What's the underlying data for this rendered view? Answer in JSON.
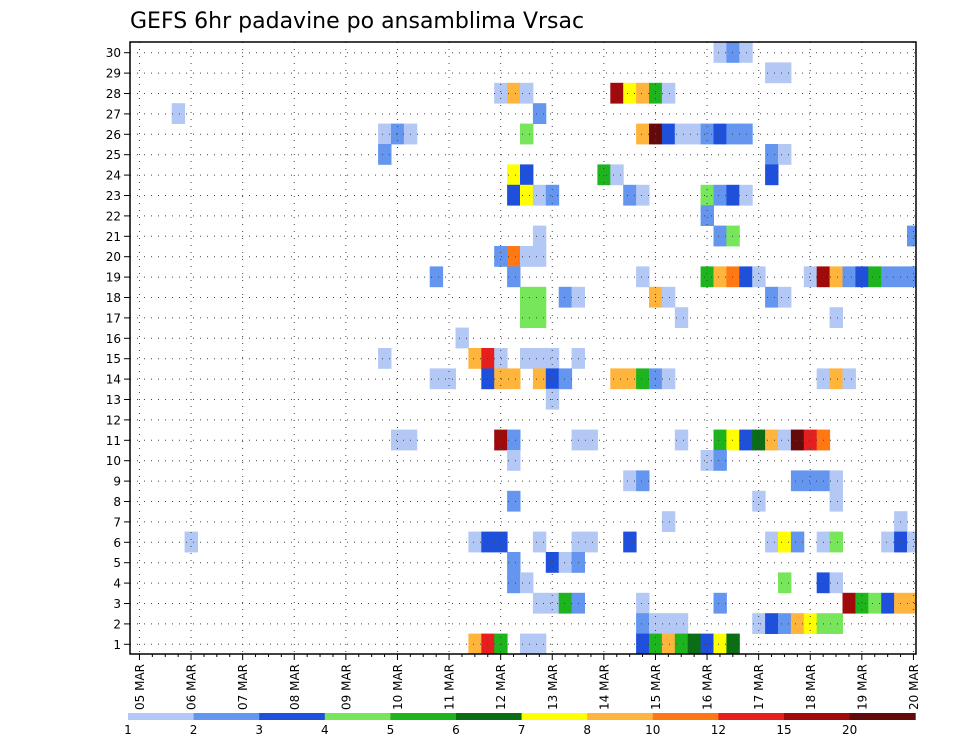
{
  "chart_data": {
    "type": "heatmap",
    "title": "GEFS 6hr padavine po ansamblima Vrsac",
    "xlabel": "",
    "ylabel": "",
    "x_unit": "6-hour steps from 05 MAR 00Z",
    "x_range_steps": [
      0,
      60
    ],
    "y_range": [
      1,
      30
    ],
    "x_tick_labels": [
      "05 MAR",
      "06 MAR",
      "07 MAR",
      "08 MAR",
      "09 MAR",
      "10 MAR",
      "11 MAR",
      "12 MAR",
      "13 MAR",
      "14 MAR",
      "15 MAR",
      "16 MAR",
      "17 MAR",
      "18 MAR",
      "19 MAR",
      "20 MAR"
    ],
    "y_tick_labels": [
      "1",
      "2",
      "3",
      "4",
      "5",
      "6",
      "7",
      "8",
      "9",
      "10",
      "11",
      "12",
      "13",
      "14",
      "15",
      "16",
      "17",
      "18",
      "19",
      "20",
      "21",
      "22",
      "23",
      "24",
      "25",
      "26",
      "27",
      "28",
      "29",
      "30"
    ],
    "grid": true,
    "legend": {
      "placement": "bottom",
      "thresholds": [
        "1",
        "2",
        "3",
        "4",
        "5",
        "6",
        "7",
        "8",
        "10",
        "12",
        "15",
        "20"
      ],
      "colors": [
        "#b4c8f5",
        "#6496f0",
        "#1e50dc",
        "#78e65a",
        "#1eb41e",
        "#0a6e14",
        "#ffff00",
        "#ffb43c",
        "#ff7814",
        "#e61e1e",
        "#a00a0a",
        "#640a0a"
      ]
    },
    "cells": [
      {
        "member": 30,
        "step": 45,
        "cls": 0
      },
      {
        "member": 30,
        "step": 46,
        "cls": 1
      },
      {
        "member": 30,
        "step": 47,
        "cls": 0
      },
      {
        "member": 29,
        "step": 49,
        "cls": 0
      },
      {
        "member": 29,
        "step": 50,
        "cls": 0
      },
      {
        "member": 28,
        "step": 28,
        "cls": 0
      },
      {
        "member": 28,
        "step": 29,
        "cls": 7
      },
      {
        "member": 28,
        "step": 30,
        "cls": 0
      },
      {
        "member": 28,
        "step": 37,
        "cls": 10
      },
      {
        "member": 28,
        "step": 38,
        "cls": 6
      },
      {
        "member": 28,
        "step": 39,
        "cls": 7
      },
      {
        "member": 28,
        "step": 40,
        "cls": 4
      },
      {
        "member": 28,
        "step": 41,
        "cls": 0
      },
      {
        "member": 27,
        "step": 3,
        "cls": 0
      },
      {
        "member": 27,
        "step": 31,
        "cls": 1
      },
      {
        "member": 26,
        "step": 19,
        "cls": 0
      },
      {
        "member": 26,
        "step": 20,
        "cls": 1
      },
      {
        "member": 26,
        "step": 21,
        "cls": 0
      },
      {
        "member": 26,
        "step": 30,
        "cls": 3
      },
      {
        "member": 26,
        "step": 39,
        "cls": 7
      },
      {
        "member": 26,
        "step": 40,
        "cls": 11
      },
      {
        "member": 26,
        "step": 41,
        "cls": 2
      },
      {
        "member": 26,
        "step": 42,
        "cls": 0
      },
      {
        "member": 26,
        "step": 43,
        "cls": 0
      },
      {
        "member": 26,
        "step": 44,
        "cls": 1
      },
      {
        "member": 26,
        "step": 45,
        "cls": 2
      },
      {
        "member": 26,
        "step": 46,
        "cls": 1
      },
      {
        "member": 26,
        "step": 47,
        "cls": 1
      },
      {
        "member": 25,
        "step": 19,
        "cls": 1
      },
      {
        "member": 25,
        "step": 49,
        "cls": 1
      },
      {
        "member": 25,
        "step": 50,
        "cls": 0
      },
      {
        "member": 24,
        "step": 29,
        "cls": 6
      },
      {
        "member": 24,
        "step": 30,
        "cls": 2
      },
      {
        "member": 24,
        "step": 36,
        "cls": 4
      },
      {
        "member": 24,
        "step": 37,
        "cls": 0
      },
      {
        "member": 24,
        "step": 49,
        "cls": 2
      },
      {
        "member": 23,
        "step": 29,
        "cls": 2
      },
      {
        "member": 23,
        "step": 30,
        "cls": 6
      },
      {
        "member": 23,
        "step": 31,
        "cls": 0
      },
      {
        "member": 23,
        "step": 32,
        "cls": 1
      },
      {
        "member": 23,
        "step": 38,
        "cls": 1
      },
      {
        "member": 23,
        "step": 39,
        "cls": 0
      },
      {
        "member": 23,
        "step": 44,
        "cls": 3
      },
      {
        "member": 23,
        "step": 45,
        "cls": 1
      },
      {
        "member": 23,
        "step": 46,
        "cls": 2
      },
      {
        "member": 23,
        "step": 47,
        "cls": 0
      },
      {
        "member": 22,
        "step": 44,
        "cls": 1
      },
      {
        "member": 21,
        "step": 31,
        "cls": 0
      },
      {
        "member": 21,
        "step": 45,
        "cls": 1
      },
      {
        "member": 21,
        "step": 46,
        "cls": 3
      },
      {
        "member": 21,
        "step": 60,
        "cls": 1
      },
      {
        "member": 20,
        "step": 28,
        "cls": 1
      },
      {
        "member": 20,
        "step": 29,
        "cls": 8
      },
      {
        "member": 20,
        "step": 30,
        "cls": 0
      },
      {
        "member": 20,
        "step": 31,
        "cls": 0
      },
      {
        "member": 19,
        "step": 23,
        "cls": 1
      },
      {
        "member": 19,
        "step": 29,
        "cls": 1
      },
      {
        "member": 19,
        "step": 39,
        "cls": 0
      },
      {
        "member": 19,
        "step": 44,
        "cls": 4
      },
      {
        "member": 19,
        "step": 45,
        "cls": 7
      },
      {
        "member": 19,
        "step": 46,
        "cls": 8
      },
      {
        "member": 19,
        "step": 47,
        "cls": 2
      },
      {
        "member": 19,
        "step": 48,
        "cls": 0
      },
      {
        "member": 19,
        "step": 52,
        "cls": 0
      },
      {
        "member": 19,
        "step": 53,
        "cls": 10
      },
      {
        "member": 19,
        "step": 54,
        "cls": 7
      },
      {
        "member": 19,
        "step": 55,
        "cls": 1
      },
      {
        "member": 19,
        "step": 56,
        "cls": 2
      },
      {
        "member": 19,
        "step": 57,
        "cls": 4
      },
      {
        "member": 19,
        "step": 58,
        "cls": 1
      },
      {
        "member": 19,
        "step": 59,
        "cls": 1
      },
      {
        "member": 19,
        "step": 60,
        "cls": 1
      },
      {
        "member": 18,
        "step": 30,
        "cls": 3
      },
      {
        "member": 18,
        "step": 31,
        "cls": 3
      },
      {
        "member": 18,
        "step": 33,
        "cls": 1
      },
      {
        "member": 18,
        "step": 34,
        "cls": 0
      },
      {
        "member": 18,
        "step": 40,
        "cls": 7
      },
      {
        "member": 18,
        "step": 41,
        "cls": 0
      },
      {
        "member": 18,
        "step": 49,
        "cls": 1
      },
      {
        "member": 18,
        "step": 50,
        "cls": 0
      },
      {
        "member": 17,
        "step": 30,
        "cls": 3
      },
      {
        "member": 17,
        "step": 31,
        "cls": 3
      },
      {
        "member": 17,
        "step": 42,
        "cls": 0
      },
      {
        "member": 17,
        "step": 54,
        "cls": 0
      },
      {
        "member": 16,
        "step": 25,
        "cls": 0
      },
      {
        "member": 15,
        "step": 19,
        "cls": 0
      },
      {
        "member": 15,
        "step": 26,
        "cls": 7
      },
      {
        "member": 15,
        "step": 27,
        "cls": 9
      },
      {
        "member": 15,
        "step": 28,
        "cls": 0
      },
      {
        "member": 15,
        "step": 30,
        "cls": 0
      },
      {
        "member": 15,
        "step": 31,
        "cls": 0
      },
      {
        "member": 15,
        "step": 32,
        "cls": 0
      },
      {
        "member": 15,
        "step": 34,
        "cls": 0
      },
      {
        "member": 14,
        "step": 23,
        "cls": 0
      },
      {
        "member": 14,
        "step": 24,
        "cls": 0
      },
      {
        "member": 14,
        "step": 27,
        "cls": 2
      },
      {
        "member": 14,
        "step": 28,
        "cls": 7
      },
      {
        "member": 14,
        "step": 29,
        "cls": 7
      },
      {
        "member": 14,
        "step": 31,
        "cls": 7
      },
      {
        "member": 14,
        "step": 32,
        "cls": 2
      },
      {
        "member": 14,
        "step": 33,
        "cls": 1
      },
      {
        "member": 14,
        "step": 37,
        "cls": 7
      },
      {
        "member": 14,
        "step": 38,
        "cls": 7
      },
      {
        "member": 14,
        "step": 39,
        "cls": 4
      },
      {
        "member": 14,
        "step": 40,
        "cls": 1
      },
      {
        "member": 14,
        "step": 41,
        "cls": 0
      },
      {
        "member": 14,
        "step": 53,
        "cls": 0
      },
      {
        "member": 14,
        "step": 54,
        "cls": 7
      },
      {
        "member": 14,
        "step": 55,
        "cls": 0
      },
      {
        "member": 13,
        "step": 32,
        "cls": 0
      },
      {
        "member": 11,
        "step": 20,
        "cls": 0
      },
      {
        "member": 11,
        "step": 21,
        "cls": 0
      },
      {
        "member": 11,
        "step": 28,
        "cls": 10
      },
      {
        "member": 11,
        "step": 29,
        "cls": 1
      },
      {
        "member": 11,
        "step": 34,
        "cls": 0
      },
      {
        "member": 11,
        "step": 35,
        "cls": 0
      },
      {
        "member": 11,
        "step": 42,
        "cls": 0
      },
      {
        "member": 11,
        "step": 45,
        "cls": 4
      },
      {
        "member": 11,
        "step": 46,
        "cls": 6
      },
      {
        "member": 11,
        "step": 47,
        "cls": 2
      },
      {
        "member": 11,
        "step": 48,
        "cls": 5
      },
      {
        "member": 11,
        "step": 49,
        "cls": 7
      },
      {
        "member": 11,
        "step": 50,
        "cls": 0
      },
      {
        "member": 11,
        "step": 51,
        "cls": 11
      },
      {
        "member": 11,
        "step": 52,
        "cls": 9
      },
      {
        "member": 11,
        "step": 53,
        "cls": 8
      },
      {
        "member": 10,
        "step": 29,
        "cls": 0
      },
      {
        "member": 10,
        "step": 44,
        "cls": 0
      },
      {
        "member": 10,
        "step": 45,
        "cls": 1
      },
      {
        "member": 9,
        "step": 38,
        "cls": 0
      },
      {
        "member": 9,
        "step": 39,
        "cls": 1
      },
      {
        "member": 9,
        "step": 51,
        "cls": 1
      },
      {
        "member": 9,
        "step": 52,
        "cls": 1
      },
      {
        "member": 9,
        "step": 53,
        "cls": 1
      },
      {
        "member": 9,
        "step": 54,
        "cls": 0
      },
      {
        "member": 8,
        "step": 29,
        "cls": 1
      },
      {
        "member": 8,
        "step": 48,
        "cls": 0
      },
      {
        "member": 8,
        "step": 54,
        "cls": 0
      },
      {
        "member": 7,
        "step": 41,
        "cls": 0
      },
      {
        "member": 7,
        "step": 59,
        "cls": 0
      },
      {
        "member": 6,
        "step": 4,
        "cls": 0
      },
      {
        "member": 6,
        "step": 26,
        "cls": 0
      },
      {
        "member": 6,
        "step": 27,
        "cls": 2
      },
      {
        "member": 6,
        "step": 28,
        "cls": 2
      },
      {
        "member": 6,
        "step": 31,
        "cls": 0
      },
      {
        "member": 6,
        "step": 34,
        "cls": 0
      },
      {
        "member": 6,
        "step": 35,
        "cls": 0
      },
      {
        "member": 6,
        "step": 38,
        "cls": 2
      },
      {
        "member": 6,
        "step": 49,
        "cls": 0
      },
      {
        "member": 6,
        "step": 50,
        "cls": 6
      },
      {
        "member": 6,
        "step": 51,
        "cls": 1
      },
      {
        "member": 6,
        "step": 53,
        "cls": 0
      },
      {
        "member": 6,
        "step": 54,
        "cls": 3
      },
      {
        "member": 6,
        "step": 58,
        "cls": 0
      },
      {
        "member": 6,
        "step": 59,
        "cls": 2
      },
      {
        "member": 6,
        "step": 60,
        "cls": 0
      },
      {
        "member": 5,
        "step": 29,
        "cls": 1
      },
      {
        "member": 5,
        "step": 32,
        "cls": 2
      },
      {
        "member": 5,
        "step": 33,
        "cls": 0
      },
      {
        "member": 5,
        "step": 34,
        "cls": 1
      },
      {
        "member": 4,
        "step": 29,
        "cls": 1
      },
      {
        "member": 4,
        "step": 30,
        "cls": 0
      },
      {
        "member": 4,
        "step": 50,
        "cls": 3
      },
      {
        "member": 4,
        "step": 53,
        "cls": 2
      },
      {
        "member": 4,
        "step": 54,
        "cls": 0
      },
      {
        "member": 3,
        "step": 31,
        "cls": 0
      },
      {
        "member": 3,
        "step": 32,
        "cls": 0
      },
      {
        "member": 3,
        "step": 33,
        "cls": 4
      },
      {
        "member": 3,
        "step": 34,
        "cls": 1
      },
      {
        "member": 3,
        "step": 39,
        "cls": 0
      },
      {
        "member": 3,
        "step": 45,
        "cls": 1
      },
      {
        "member": 3,
        "step": 55,
        "cls": 10
      },
      {
        "member": 3,
        "step": 56,
        "cls": 4
      },
      {
        "member": 3,
        "step": 57,
        "cls": 3
      },
      {
        "member": 3,
        "step": 58,
        "cls": 2
      },
      {
        "member": 3,
        "step": 59,
        "cls": 7
      },
      {
        "member": 3,
        "step": 60,
        "cls": 7
      },
      {
        "member": 2,
        "step": 39,
        "cls": 1
      },
      {
        "member": 2,
        "step": 40,
        "cls": 0
      },
      {
        "member": 2,
        "step": 41,
        "cls": 0
      },
      {
        "member": 2,
        "step": 42,
        "cls": 0
      },
      {
        "member": 2,
        "step": 48,
        "cls": 0
      },
      {
        "member": 2,
        "step": 49,
        "cls": 2
      },
      {
        "member": 2,
        "step": 50,
        "cls": 1
      },
      {
        "member": 2,
        "step": 51,
        "cls": 7
      },
      {
        "member": 2,
        "step": 52,
        "cls": 6
      },
      {
        "member": 2,
        "step": 53,
        "cls": 3
      },
      {
        "member": 2,
        "step": 54,
        "cls": 3
      },
      {
        "member": 1,
        "step": 26,
        "cls": 7
      },
      {
        "member": 1,
        "step": 27,
        "cls": 9
      },
      {
        "member": 1,
        "step": 28,
        "cls": 4
      },
      {
        "member": 1,
        "step": 30,
        "cls": 0
      },
      {
        "member": 1,
        "step": 31,
        "cls": 0
      },
      {
        "member": 1,
        "step": 39,
        "cls": 2
      },
      {
        "member": 1,
        "step": 40,
        "cls": 4
      },
      {
        "member": 1,
        "step": 41,
        "cls": 7
      },
      {
        "member": 1,
        "step": 42,
        "cls": 4
      },
      {
        "member": 1,
        "step": 43,
        "cls": 5
      },
      {
        "member": 1,
        "step": 44,
        "cls": 2
      },
      {
        "member": 1,
        "step": 45,
        "cls": 6
      },
      {
        "member": 1,
        "step": 46,
        "cls": 5
      }
    ]
  }
}
